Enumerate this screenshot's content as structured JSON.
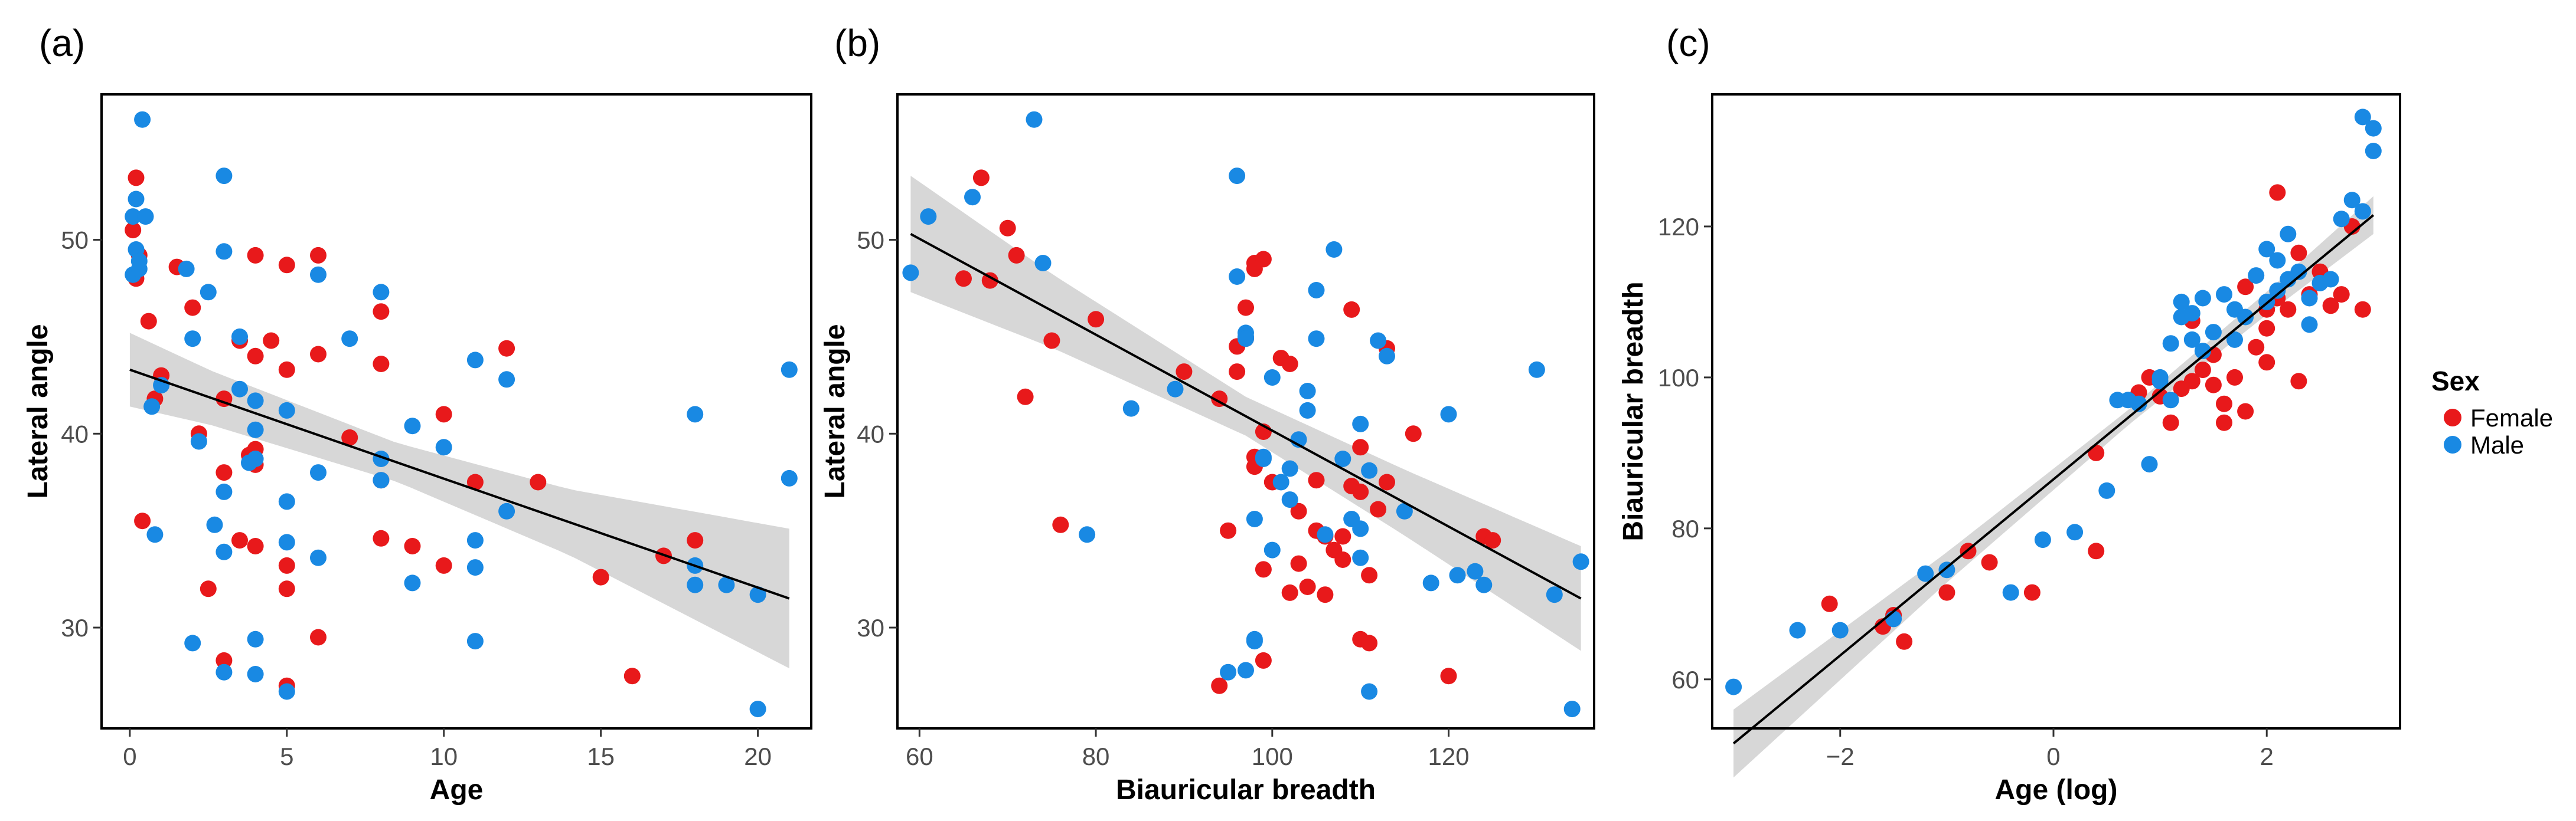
{
  "legend": {
    "title": "Sex",
    "entries": [
      {
        "label": "Female",
        "color": "#e8191b"
      },
      {
        "label": "Male",
        "color": "#1989e3"
      }
    ]
  },
  "style": {
    "female_color": "#e8191b",
    "male_color": "#1989e3",
    "ribbon_color": "#d3d3d3",
    "line_color": "#000000"
  },
  "chart_data": [
    {
      "type": "scatter",
      "panel_label": "(a)",
      "xlabel": "Age",
      "ylabel": "Lateral angle",
      "xlim": [
        -0.9,
        21.7
      ],
      "ylim": [
        24.8,
        57.5
      ],
      "xticks": [
        0,
        5,
        10,
        15,
        20
      ],
      "yticks": [
        30,
        40,
        50
      ],
      "fit": {
        "x": [
          0,
          21
        ],
        "y": [
          43.3,
          31.5
        ],
        "se": [
          [
            0,
            1.9
          ],
          [
            2.6,
            1.4
          ],
          [
            8.5,
            1.0
          ],
          [
            14,
            1.7
          ],
          [
            21,
            3.6
          ]
        ]
      },
      "series": [
        {
          "name": "Female",
          "x": [
            0.1,
            0.2,
            0.2,
            0.3,
            0.4,
            0.6,
            0.8,
            1.0,
            1.5,
            2.0,
            2.2,
            2.5,
            3.0,
            3.0,
            3.0,
            3.5,
            3.5,
            3.8,
            4.0,
            4.0,
            4.0,
            4.0,
            4.0,
            4.5,
            5.0,
            5.0,
            5.0,
            5.0,
            5.0,
            6.0,
            6.0,
            6.0,
            7.0,
            8.0,
            8.0,
            8.0,
            8.0,
            9.0,
            10.0,
            10.0,
            11.0,
            12.0,
            13.0,
            15.0,
            16.0,
            17.0,
            18.0
          ],
          "y": [
            50.5,
            48.0,
            53.2,
            49.2,
            35.5,
            45.8,
            41.8,
            43.0,
            48.6,
            46.5,
            40.0,
            32.0,
            38.0,
            41.8,
            28.3,
            44.8,
            34.5,
            38.9,
            49.2,
            44.0,
            39.2,
            38.4,
            34.2,
            44.8,
            48.7,
            43.3,
            33.2,
            32.0,
            27.0,
            49.2,
            44.1,
            29.5,
            39.8,
            46.3,
            43.6,
            34.6,
            37.6,
            34.2,
            41.0,
            33.2,
            37.5,
            44.4,
            37.5,
            32.6,
            27.5,
            33.7,
            34.5
          ]
        },
        {
          "name": "Male",
          "x": [
            0.1,
            0.1,
            0.2,
            0.2,
            0.3,
            0.3,
            0.4,
            0.5,
            0.7,
            0.8,
            1.0,
            1.8,
            2.0,
            2.0,
            2.2,
            2.5,
            2.7,
            3.0,
            3.0,
            3.0,
            3.0,
            3.0,
            3.5,
            3.5,
            3.8,
            4.0,
            4.0,
            4.0,
            4.0,
            4.0,
            5.0,
            5.0,
            5.0,
            5.0,
            6.0,
            6.0,
            6.0,
            7.0,
            8.0,
            8.0,
            8.0,
            9.0,
            9.0,
            10.0,
            11.0,
            11.0,
            11.0,
            11.0,
            12.0,
            12.0,
            18.0,
            18.0,
            18.0,
            19.0,
            20.0,
            20.0,
            21.0,
            21.0
          ],
          "y": [
            51.2,
            48.2,
            52.1,
            49.5,
            48.5,
            48.9,
            56.2,
            51.2,
            41.4,
            34.8,
            42.5,
            48.5,
            29.2,
            44.9,
            39.6,
            47.3,
            35.3,
            53.3,
            49.4,
            37.0,
            33.9,
            27.7,
            42.3,
            45.0,
            38.5,
            41.7,
            40.2,
            38.7,
            29.4,
            27.6,
            41.2,
            36.5,
            34.4,
            26.7,
            48.2,
            38.0,
            33.6,
            44.9,
            47.3,
            38.7,
            37.6,
            40.4,
            32.3,
            39.3,
            43.8,
            34.5,
            33.1,
            29.3,
            42.8,
            36.0,
            41.0,
            33.2,
            32.2,
            32.2,
            31.7,
            25.8,
            43.3,
            37.7
          ]
        }
      ]
    },
    {
      "type": "scatter",
      "panel_label": "(b)",
      "xlabel": "Biauricular breadth",
      "ylabel": "Lateral angle",
      "xlim": [
        57.5,
        136.5
      ],
      "ylim": [
        24.8,
        57.5
      ],
      "xticks": [
        60,
        80,
        100,
        120
      ],
      "yticks": [
        30,
        40,
        50
      ],
      "fit": {
        "x": [
          59,
          135
        ],
        "y": [
          50.3,
          31.5
        ],
        "se": [
          [
            59,
            3.0
          ],
          [
            75,
            1.9
          ],
          [
            97,
            1.0
          ],
          [
            115,
            1.7
          ],
          [
            135,
            2.7
          ]
        ]
      },
      "series": [
        {
          "name": "Female",
          "x": [
            65,
            67,
            68,
            70,
            71,
            72,
            75,
            76,
            80,
            90,
            94,
            94,
            95,
            96,
            96,
            97,
            97,
            98,
            98,
            98,
            98,
            99,
            99,
            99,
            99,
            100,
            101,
            102,
            102,
            103,
            103,
            104,
            105,
            105,
            106,
            106,
            107,
            108,
            108,
            109,
            109,
            110,
            110,
            110,
            111,
            111,
            112,
            113,
            113,
            116,
            120,
            124,
            125
          ],
          "y": [
            48.0,
            53.2,
            47.9,
            50.6,
            49.2,
            41.9,
            44.8,
            35.3,
            45.9,
            43.2,
            41.8,
            27.0,
            35.0,
            44.5,
            43.2,
            46.5,
            44.9,
            48.5,
            48.8,
            38.8,
            38.3,
            40.1,
            33.0,
            28.3,
            49.0,
            37.5,
            43.9,
            43.6,
            31.8,
            36.0,
            33.3,
            32.1,
            37.6,
            35.0,
            34.7,
            31.7,
            34.0,
            33.5,
            34.7,
            37.3,
            46.4,
            39.3,
            37.0,
            29.4,
            32.7,
            29.2,
            36.1,
            44.4,
            37.5,
            40.0,
            27.5,
            34.7,
            34.5
          ]
        },
        {
          "name": "Male",
          "x": [
            59,
            61,
            66,
            73,
            74,
            79,
            84,
            89,
            95,
            96,
            96,
            97,
            97,
            97,
            97,
            98,
            98,
            98,
            99,
            99,
            100,
            100,
            101,
            102,
            102,
            103,
            104,
            104,
            105,
            105,
            106,
            107,
            108,
            109,
            110,
            110,
            110,
            111,
            111,
            112,
            113,
            115,
            118,
            120,
            121,
            123,
            124,
            130,
            132,
            134,
            135
          ],
          "y": [
            48.3,
            51.2,
            52.2,
            56.2,
            48.8,
            34.8,
            41.3,
            42.3,
            27.7,
            48.1,
            53.3,
            45.2,
            45.0,
            44.9,
            27.8,
            29.3,
            29.4,
            35.6,
            38.8,
            38.7,
            34.0,
            42.9,
            37.5,
            36.6,
            38.2,
            39.7,
            41.2,
            42.2,
            44.9,
            47.4,
            34.8,
            49.5,
            38.7,
            35.6,
            40.5,
            35.1,
            33.6,
            26.7,
            38.1,
            44.8,
            44.0,
            36.0,
            32.3,
            41.0,
            32.7,
            32.9,
            32.2,
            43.3,
            31.7,
            25.8,
            33.4
          ]
        }
      ]
    },
    {
      "type": "scatter",
      "panel_label": "(c)",
      "xlabel": "Age  (log)",
      "ylabel": "Biauricular breadth",
      "xlim": [
        -3.2,
        3.25
      ],
      "ylim": [
        53.5,
        137.5
      ],
      "xticks": [
        -2,
        0,
        2
      ],
      "yticks": [
        60,
        80,
        100,
        120
      ],
      "fit": {
        "x": [
          -3,
          3
        ],
        "y": [
          51.5,
          121.5
        ],
        "se": [
          [
            -3,
            4.5
          ],
          [
            -1,
            2.0
          ],
          [
            0.7,
            1.0
          ],
          [
            2,
            1.5
          ],
          [
            3,
            2.5
          ]
        ]
      },
      "series": [
        {
          "name": "Female",
          "x": [
            -2.1,
            -1.6,
            -1.5,
            -1.4,
            -1.0,
            -0.8,
            -0.6,
            -0.2,
            0.4,
            0.4,
            0.8,
            0.9,
            1.0,
            1.1,
            1.2,
            1.3,
            1.3,
            1.4,
            1.5,
            1.5,
            1.6,
            1.6,
            1.7,
            1.8,
            1.8,
            1.9,
            2.0,
            2.0,
            2.0,
            2.1,
            2.1,
            2.2,
            2.3,
            2.3,
            2.4,
            2.5,
            2.6,
            2.7,
            2.8,
            2.9
          ],
          "y": [
            70.0,
            67.0,
            68.5,
            65.0,
            71.5,
            77.0,
            75.5,
            71.5,
            77.0,
            90.0,
            98.0,
            100.0,
            97.5,
            94.0,
            98.5,
            99.5,
            107.5,
            101.0,
            99.0,
            103.0,
            96.5,
            94.0,
            100.0,
            95.5,
            112.0,
            104.0,
            109.0,
            102.0,
            106.5,
            110.5,
            124.5,
            109.0,
            99.5,
            116.5,
            111.0,
            114.0,
            109.5,
            111.0,
            120.0,
            109.0
          ]
        },
        {
          "name": "Male",
          "x": [
            -3.0,
            -2.4,
            -2.0,
            -1.5,
            -1.2,
            -1.0,
            -0.4,
            -0.1,
            0.2,
            0.5,
            0.6,
            0.7,
            0.8,
            0.9,
            1.0,
            1.0,
            1.1,
            1.1,
            1.2,
            1.2,
            1.3,
            1.3,
            1.4,
            1.4,
            1.5,
            1.6,
            1.7,
            1.7,
            1.8,
            1.9,
            2.0,
            2.0,
            2.1,
            2.1,
            2.2,
            2.2,
            2.3,
            2.4,
            2.4,
            2.5,
            2.6,
            2.7,
            2.8,
            2.9,
            2.9,
            3.0,
            3.0
          ],
          "y": [
            59.0,
            66.5,
            66.5,
            68.0,
            74.0,
            74.5,
            71.5,
            78.5,
            79.5,
            85.0,
            97.0,
            97.0,
            96.5,
            88.5,
            100.0,
            99.5,
            97.0,
            104.5,
            108.0,
            110.0,
            105.0,
            108.5,
            103.5,
            110.5,
            106.0,
            111.0,
            105.0,
            109.0,
            108.0,
            113.5,
            117.0,
            110.0,
            115.5,
            111.5,
            119.0,
            113.0,
            114.0,
            107.0,
            110.5,
            112.5,
            113.0,
            121.0,
            123.5,
            134.5,
            122.0,
            133.0,
            130.0
          ]
        }
      ]
    }
  ]
}
